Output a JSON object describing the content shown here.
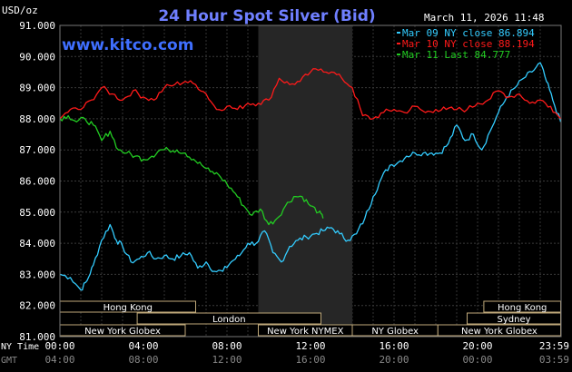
{
  "header": {
    "title": "24 Hour Spot Silver (Bid)",
    "unit": "USD/oz",
    "timestamp": "March 11, 2026 11:48",
    "website": "www.kitco.com"
  },
  "colors": {
    "mar09": "#33ccff",
    "mar10": "#ff1a1a",
    "mar11": "#22cc22",
    "title": "#6f7fff",
    "website": "#3f6fff",
    "sessionLabel": "#ffffff",
    "marketFill": "#000000",
    "marketBorder": "#bfa97a"
  },
  "legend": [
    {
      "series": "mar09",
      "label": "Mar 09 NY close 86.894"
    },
    {
      "series": "mar10",
      "label": "Mar 10 NY close 88.194"
    },
    {
      "series": "mar11",
      "label": "Mar 11 Last 84.777"
    }
  ],
  "chart_data": {
    "type": "line",
    "title": "24 Hour Spot Silver (Bid)",
    "ylabel": "USD/oz",
    "ylim": [
      81,
      91
    ],
    "yticks": [
      "91.000",
      "90.000",
      "89.000",
      "88.000",
      "87.000",
      "86.000",
      "85.000",
      "84.000",
      "83.000",
      "82.000",
      "81.000"
    ],
    "xlim": [
      0,
      24
    ],
    "x_axis_rows": [
      {
        "label": "NY Time",
        "ticks": [
          "00:00",
          "04:00",
          "08:00",
          "12:00",
          "16:00",
          "20:00",
          "23:59"
        ]
      },
      {
        "label": "GMT",
        "ticks": [
          "04:00",
          "08:00",
          "12:00",
          "16:00",
          "20:00",
          "00:00",
          "03:59"
        ]
      }
    ],
    "xtick_hours": [
      0,
      4,
      8,
      12,
      16,
      20,
      23.98
    ],
    "grid": true,
    "legend_position": "top-right",
    "highlight_band_hours": [
      9.5,
      14.0
    ],
    "series": [
      {
        "key": "mar09",
        "x": [
          0.0,
          0.5,
          1.0,
          1.3,
          1.6,
          2.0,
          2.4,
          2.7,
          3.0,
          3.4,
          3.8,
          4.2,
          4.6,
          5.0,
          5.4,
          5.8,
          6.2,
          6.6,
          7.0,
          7.4,
          7.8,
          8.2,
          8.6,
          9.0,
          9.4,
          9.8,
          10.2,
          10.6,
          11.0,
          11.4,
          11.8,
          12.2,
          12.6,
          13.0,
          13.4,
          13.8,
          14.2,
          14.6,
          15.0,
          15.4,
          15.8,
          16.2,
          16.6,
          17.0,
          17.4,
          17.8,
          18.2,
          18.6,
          19.0,
          19.4,
          19.8,
          20.2,
          20.6,
          21.0,
          21.4,
          21.8,
          22.2,
          22.6,
          23.0,
          23.3,
          23.6,
          23.98
        ],
        "values": [
          83.0,
          82.9,
          82.5,
          82.8,
          83.3,
          84.1,
          84.6,
          84.1,
          83.9,
          83.4,
          83.5,
          83.7,
          83.5,
          83.6,
          83.5,
          83.6,
          83.7,
          83.2,
          83.4,
          83.1,
          83.1,
          83.4,
          83.6,
          84.0,
          84.0,
          84.4,
          83.7,
          83.4,
          83.9,
          84.1,
          84.2,
          84.3,
          84.4,
          84.5,
          84.3,
          84.1,
          84.3,
          84.8,
          85.5,
          86.1,
          86.5,
          86.6,
          86.8,
          86.9,
          86.9,
          86.9,
          86.9,
          87.2,
          87.8,
          87.3,
          87.5,
          87.0,
          87.6,
          88.2,
          88.7,
          89.0,
          89.3,
          89.5,
          89.8,
          89.2,
          88.6,
          87.9
        ]
      },
      {
        "key": "mar10",
        "x": [
          0.0,
          0.5,
          1.0,
          1.5,
          2.0,
          2.5,
          3.0,
          3.5,
          4.0,
          4.5,
          5.0,
          5.5,
          6.0,
          6.5,
          7.0,
          7.5,
          8.0,
          8.5,
          9.0,
          9.5,
          10.0,
          10.5,
          11.0,
          11.5,
          12.0,
          12.5,
          13.0,
          13.5,
          14.0,
          14.5,
          15.0,
          15.5,
          16.0,
          16.5,
          17.0,
          17.5,
          18.0,
          18.5,
          19.0,
          19.5,
          20.0,
          20.5,
          21.0,
          21.5,
          22.0,
          22.5,
          23.0,
          23.5,
          23.98
        ],
        "values": [
          88.0,
          88.3,
          88.3,
          88.6,
          89.0,
          88.8,
          88.6,
          88.9,
          88.7,
          88.6,
          89.0,
          89.1,
          89.2,
          89.1,
          88.8,
          88.3,
          88.4,
          88.3,
          88.5,
          88.5,
          88.6,
          89.3,
          89.1,
          89.2,
          89.5,
          89.6,
          89.5,
          89.3,
          89.0,
          88.1,
          88.0,
          88.2,
          88.3,
          88.2,
          88.4,
          88.2,
          88.3,
          88.3,
          88.3,
          88.3,
          88.5,
          88.6,
          88.9,
          88.7,
          88.8,
          88.5,
          88.6,
          88.4,
          88.0
        ]
      },
      {
        "key": "mar11",
        "x": [
          0.0,
          0.4,
          0.8,
          1.2,
          1.6,
          2.0,
          2.4,
          2.8,
          3.2,
          3.6,
          4.0,
          4.4,
          4.8,
          5.2,
          5.6,
          6.0,
          6.4,
          6.8,
          7.2,
          7.6,
          8.0,
          8.4,
          8.8,
          9.2,
          9.6,
          10.0,
          10.4,
          10.8,
          11.2,
          11.6,
          12.0,
          12.4,
          12.6
        ],
        "values": [
          88.0,
          88.1,
          87.9,
          88.0,
          87.8,
          87.3,
          87.6,
          87.0,
          86.9,
          86.8,
          86.7,
          86.8,
          87.0,
          87.0,
          87.0,
          86.9,
          86.7,
          86.5,
          86.3,
          86.2,
          85.9,
          85.6,
          85.2,
          84.9,
          85.1,
          84.6,
          84.8,
          85.2,
          85.5,
          85.5,
          85.2,
          85.0,
          84.8
        ]
      }
    ]
  },
  "sessions": [
    {
      "label": "Hong Kong",
      "start": 0.0,
      "end": 6.5,
      "row": 0
    },
    {
      "label": "London",
      "start": 3.7,
      "end": 12.5,
      "row": 1
    },
    {
      "label": "New York Globex",
      "start": 0.0,
      "end": 6.0,
      "row": 2
    },
    {
      "label": "New York NYMEX",
      "start": 9.5,
      "end": 14.0,
      "row": 2
    },
    {
      "label": "NY Globex",
      "start": 14.0,
      "end": 18.1,
      "row": 2
    },
    {
      "label": "Hong Kong",
      "start": 20.3,
      "end": 23.98,
      "row": 0
    },
    {
      "label": "Sydney",
      "start": 19.5,
      "end": 23.98,
      "row": 1
    },
    {
      "label": "New York Globex",
      "start": 18.1,
      "end": 23.98,
      "row": 2
    }
  ]
}
